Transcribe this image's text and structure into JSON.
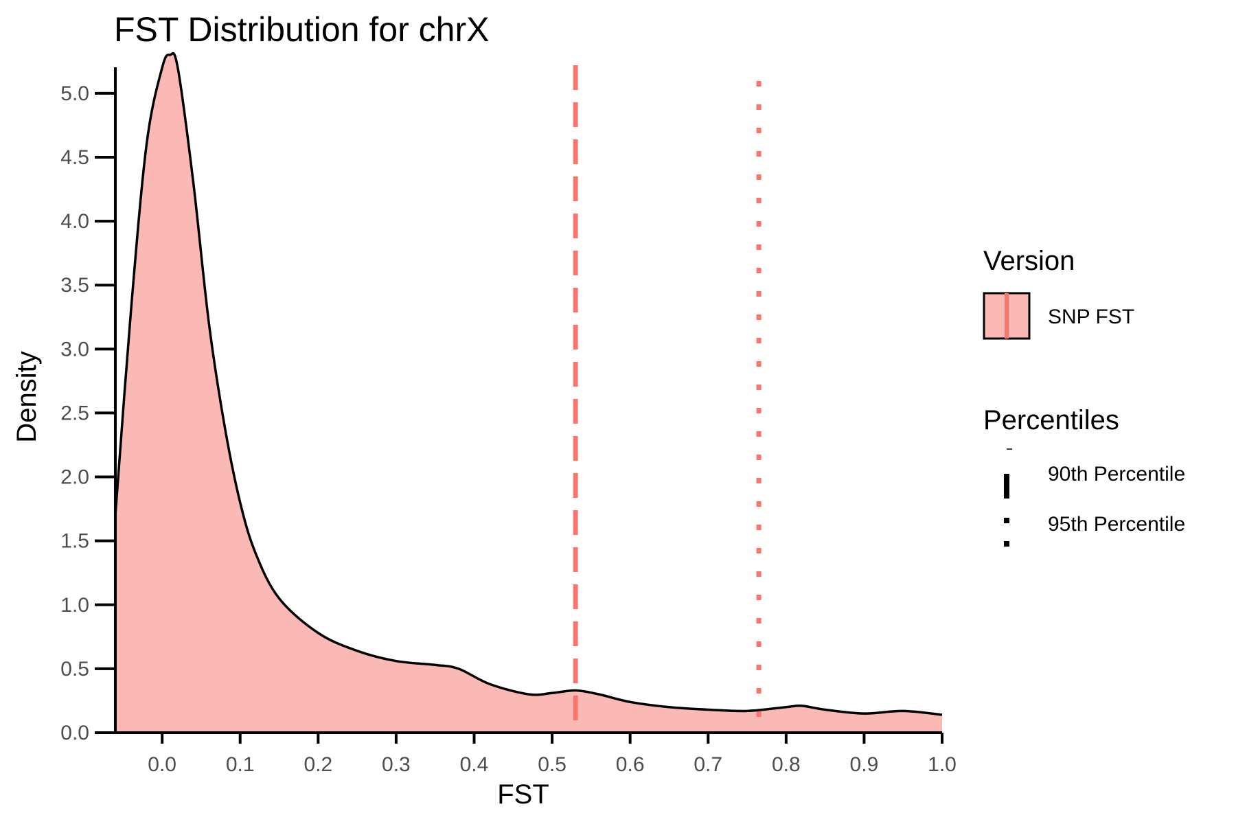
{
  "chart_data": {
    "type": "area",
    "title": "FST Distribution for chrX",
    "xlabel": "FST",
    "ylabel": "Density",
    "xlim": [
      -0.06,
      1.0
    ],
    "ylim": [
      0,
      5.3
    ],
    "x_ticks": [
      "0.0",
      "0.1",
      "0.2",
      "0.3",
      "0.4",
      "0.5",
      "0.6",
      "0.7",
      "0.8",
      "0.9",
      "1.0"
    ],
    "y_ticks": [
      "0.0",
      "0.5",
      "1.0",
      "1.5",
      "2.0",
      "2.5",
      "3.0",
      "3.5",
      "4.0",
      "4.5",
      "5.0"
    ],
    "grid": false,
    "fill_color": "#FAB9B5",
    "line_color": "#000000",
    "percentile_color": "#F8766D",
    "series": [
      {
        "name": "SNP FST",
        "x": [
          -0.06,
          -0.04,
          -0.02,
          0.0,
          0.01,
          0.02,
          0.04,
          0.06,
          0.08,
          0.1,
          0.12,
          0.15,
          0.2,
          0.25,
          0.3,
          0.35,
          0.38,
          0.42,
          0.47,
          0.5,
          0.53,
          0.56,
          0.6,
          0.65,
          0.7,
          0.75,
          0.8,
          0.82,
          0.85,
          0.9,
          0.95,
          1.0
        ],
        "y": [
          1.7,
          3.3,
          4.6,
          5.2,
          5.3,
          5.2,
          4.3,
          3.2,
          2.4,
          1.8,
          1.4,
          1.05,
          0.78,
          0.64,
          0.56,
          0.53,
          0.5,
          0.38,
          0.3,
          0.31,
          0.33,
          0.3,
          0.24,
          0.2,
          0.18,
          0.17,
          0.2,
          0.21,
          0.18,
          0.15,
          0.17,
          0.14
        ]
      }
    ],
    "percentiles": [
      {
        "name": "90th Percentile",
        "x": 0.53,
        "style": "dashed"
      },
      {
        "name": "95th Percentile",
        "x": 0.765,
        "style": "dotted"
      }
    ],
    "legend": {
      "placement": "right",
      "version_title": "Version",
      "version_label": "SNP FST",
      "percentiles_title": "Percentiles",
      "p90_label": "90th Percentile",
      "p95_label": "95th Percentile"
    }
  }
}
